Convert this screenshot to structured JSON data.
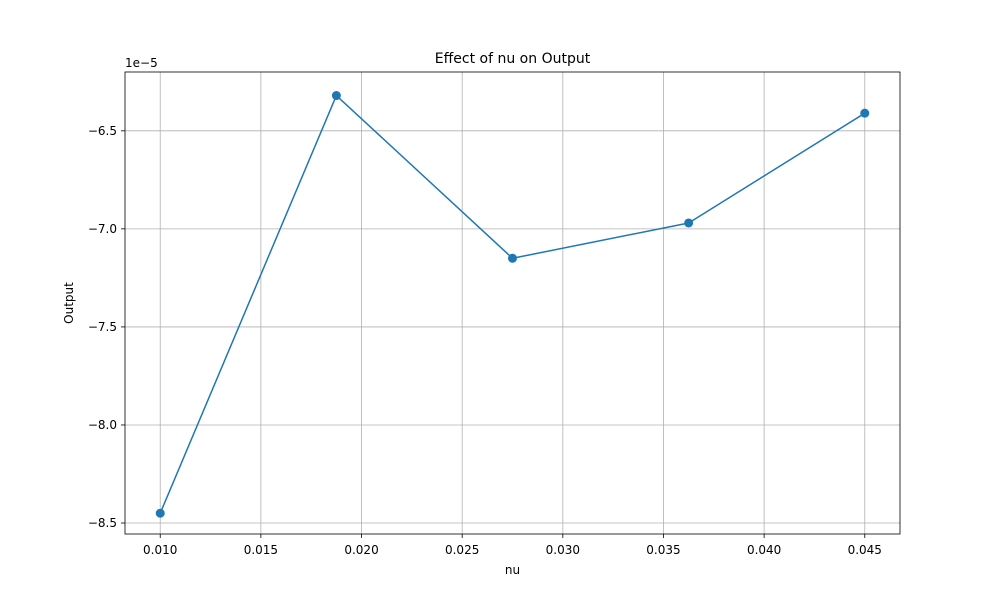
{
  "chart_data": {
    "type": "line",
    "title": "Effect of nu on Output",
    "xlabel": "nu",
    "ylabel": "Output",
    "y_offset_text": "1e−5",
    "y_scale_multiplier": 1e-05,
    "grid": true,
    "xlim": [
      0.00825,
      0.04675
    ],
    "ylim": [
      -8.556,
      -6.2
    ],
    "x_ticks": [
      0.01,
      0.015,
      0.02,
      0.025,
      0.03,
      0.035,
      0.04,
      0.045
    ],
    "x_tick_labels": [
      "0.010",
      "0.015",
      "0.020",
      "0.025",
      "0.030",
      "0.035",
      "0.040",
      "0.045"
    ],
    "y_ticks": [
      -8.5,
      -8.0,
      -7.5,
      -7.0,
      -6.5
    ],
    "y_tick_labels": [
      "−8.5",
      "−8.0",
      "−7.5",
      "−7.0",
      "−6.5"
    ],
    "series": [
      {
        "color": "#1f77b4",
        "marker": "circle",
        "x": [
          0.01,
          0.01875,
          0.0275,
          0.03625,
          0.045
        ],
        "y": [
          -8.45,
          -6.32,
          -7.15,
          -6.97,
          -6.41
        ]
      }
    ]
  }
}
